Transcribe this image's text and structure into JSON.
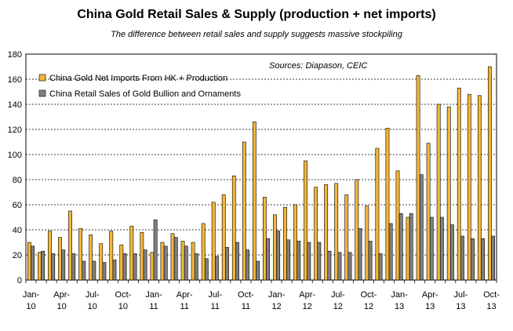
{
  "chart_data": {
    "type": "bar",
    "title": "China Gold Retail Sales & Supply (production + net imports)",
    "subtitle": "The difference between retail sales and supply suggests massive stockpiling",
    "annotation": "Sources: Diapason, CEIC",
    "ylim": [
      0,
      180
    ],
    "yticks": [
      0,
      20,
      40,
      60,
      80,
      100,
      120,
      140,
      160,
      180
    ],
    "grid": true,
    "legend_position": "top-left",
    "x_tick_labels": [
      {
        "index": 0,
        "month": "Jan-",
        "year": "10"
      },
      {
        "index": 3,
        "month": "Apr-",
        "year": "10"
      },
      {
        "index": 6,
        "month": "Jul-",
        "year": "10"
      },
      {
        "index": 9,
        "month": "Oct-",
        "year": "10"
      },
      {
        "index": 12,
        "month": "Jan-",
        "year": "11"
      },
      {
        "index": 15,
        "month": "Apr-",
        "year": "11"
      },
      {
        "index": 18,
        "month": "Jul-",
        "year": "11"
      },
      {
        "index": 21,
        "month": "Oct-",
        "year": "11"
      },
      {
        "index": 24,
        "month": "Jan-",
        "year": "12"
      },
      {
        "index": 27,
        "month": "Apr-",
        "year": "12"
      },
      {
        "index": 30,
        "month": "Jul-",
        "year": "12"
      },
      {
        "index": 33,
        "month": "Oct-",
        "year": "12"
      },
      {
        "index": 36,
        "month": "Jan-",
        "year": "13"
      },
      {
        "index": 39,
        "month": "Apr-",
        "year": "13"
      },
      {
        "index": 42,
        "month": "Jul-",
        "year": "13"
      },
      {
        "index": 45,
        "month": "Oct-",
        "year": "13"
      }
    ],
    "series": [
      {
        "name": "China Gold Net Imports From HK + Production",
        "color": "#F4B63A",
        "values": [
          30,
          22,
          39,
          34,
          55,
          41,
          36,
          29,
          39,
          28,
          43,
          38,
          22,
          30,
          37,
          31,
          30,
          45,
          62,
          68,
          83,
          110,
          126,
          66,
          52,
          58,
          60,
          95,
          74,
          76,
          77,
          68,
          80,
          59,
          105,
          121,
          87,
          50,
          163,
          109,
          140,
          138,
          153,
          148,
          147,
          170
        ]
      },
      {
        "name": "China Retail Sales of Gold Bullion and Ornaments",
        "color": "#808080",
        "values": [
          27,
          23,
          21,
          24,
          21,
          15,
          15,
          14,
          16,
          21,
          21,
          24,
          48,
          27,
          34,
          27,
          21,
          17,
          19,
          26,
          30,
          24,
          15,
          33,
          39,
          32,
          31,
          30,
          30,
          23,
          22,
          22,
          41,
          31,
          21,
          45,
          53,
          53,
          84,
          50,
          50,
          44,
          35,
          33,
          33,
          35
        ]
      }
    ]
  }
}
